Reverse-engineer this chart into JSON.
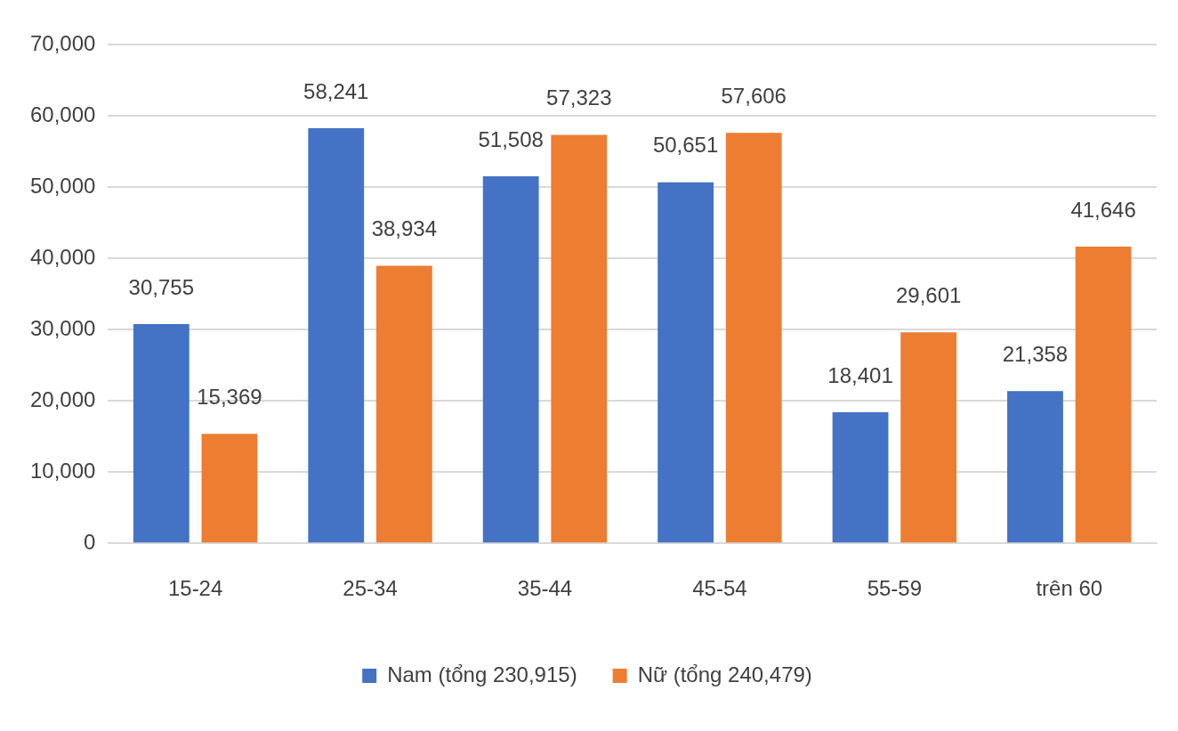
{
  "chart_data": {
    "type": "bar",
    "categories": [
      "15-24",
      "25-34",
      "35-44",
      "45-54",
      "55-59",
      "trên 60"
    ],
    "series": [
      {
        "name": "Nam (tổng 230,915)",
        "color": "#4472c4",
        "values": [
          30755,
          58241,
          51508,
          50651,
          18401,
          21358
        ],
        "value_labels": [
          "30,755",
          "58,241",
          "51,508",
          "50,651",
          "18,401",
          "21,358"
        ]
      },
      {
        "name": "Nữ (tổng 240,479)",
        "color": "#ed7d31",
        "values": [
          15369,
          38934,
          57323,
          57606,
          29601,
          41646
        ],
        "value_labels": [
          "15,369",
          "38,934",
          "57,323",
          "57,606",
          "29,601",
          "41,646"
        ]
      }
    ],
    "ylim": [
      0,
      70000
    ],
    "yticks": [
      {
        "value": 0,
        "label": "0"
      },
      {
        "value": 10000,
        "label": "10,000"
      },
      {
        "value": 20000,
        "label": "20,000"
      },
      {
        "value": 30000,
        "label": "30,000"
      },
      {
        "value": 40000,
        "label": "40,000"
      },
      {
        "value": 50000,
        "label": "50,000"
      },
      {
        "value": 60000,
        "label": "60,000"
      },
      {
        "value": 70000,
        "label": "70,000"
      }
    ],
    "grid": "y",
    "legend": "bottom"
  }
}
